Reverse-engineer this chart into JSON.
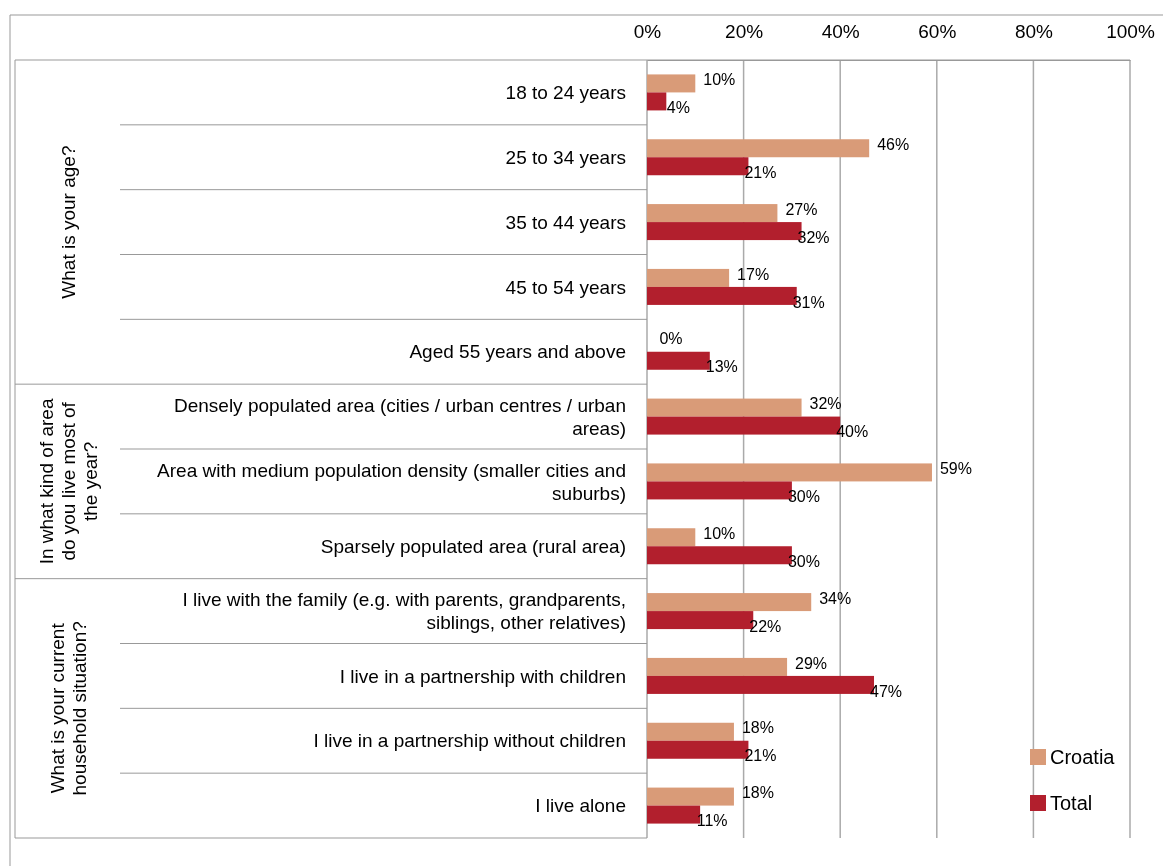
{
  "chart_data": {
    "type": "bar",
    "orientation": "horizontal",
    "categories": [
      "18 to 24 years",
      "25 to 34 years",
      "35 to 44 years",
      "45 to 54 years",
      "Aged 55 years and above",
      "Densely populated area (cities / urban centres / urban areas)",
      "Area with medium population density (smaller cities and suburbs)",
      "Sparsely populated area (rural area)",
      "I live with the family (e.g. with parents, grandparents, siblings, other relatives)",
      "I live in a partnership with children",
      "I live in a partnership without children",
      "I live alone"
    ],
    "series": [
      {
        "name": "Croatia",
        "color": "#d99b78",
        "values": [
          10,
          46,
          27,
          17,
          0,
          32,
          59,
          10,
          34,
          29,
          18,
          18
        ],
        "value_labels": [
          "10%",
          "46%",
          "27%",
          "17%",
          "0%",
          "32%",
          "59%",
          "10%",
          "34%",
          "29%",
          "18%",
          "18%"
        ]
      },
      {
        "name": "Total",
        "color": "#b21f2d",
        "values": [
          4,
          21,
          32,
          31,
          13,
          40,
          30,
          30,
          22,
          47,
          21,
          11
        ],
        "value_labels": [
          "4%",
          "21%",
          "32%",
          "31%",
          "13%",
          "40%",
          "30%",
          "30%",
          "22%",
          "47%",
          "21%",
          "11%"
        ]
      }
    ],
    "xlim": [
      0,
      100
    ],
    "xticks": [
      {
        "value": 0,
        "label": "0%"
      },
      {
        "value": 20,
        "label": "20%"
      },
      {
        "value": 40,
        "label": "40%"
      },
      {
        "value": 60,
        "label": "60%"
      },
      {
        "value": 80,
        "label": "80%"
      },
      {
        "value": 100,
        "label": "100%"
      }
    ],
    "grid": "x",
    "legend": "bottom right",
    "annotations": [
      "What is your age?",
      "In what kind of area do you live most of the year?",
      "What is your current household situation?"
    ]
  }
}
